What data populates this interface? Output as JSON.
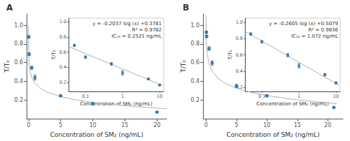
{
  "chart_data": [
    {
      "type": "scatter",
      "title": "A",
      "x_label": "Concentration of SM₂ (ng/mL)",
      "y_label": "T/T₀",
      "xlim": [
        -0.3,
        21.5
      ],
      "ylim": [
        0.0,
        1.12
      ],
      "xticks": [
        0,
        5,
        10,
        15,
        20
      ],
      "yticks": [
        0.2,
        0.4,
        0.6,
        0.8,
        {
          "value": 1.0,
          "label": "1.0"
        }
      ],
      "grid": false,
      "series": [
        {
          "type": "line",
          "color": "#b0b0b0",
          "x": [
            0.001,
            0.05,
            0.1,
            0.2,
            0.5,
            1,
            2,
            3,
            5,
            7,
            10,
            14,
            18,
            21.5
          ],
          "values": [
            0.9892,
            0.6431,
            0.5818,
            0.5205,
            0.4394,
            0.3781,
            0.3168,
            0.2809,
            0.2357,
            0.206,
            0.1744,
            0.1446,
            0.1224,
            0.1067
          ]
        },
        {
          "type": "scatter",
          "color": "#1f6faa",
          "x": [
            0.05,
            0.1,
            0.5,
            1.0,
            5.0,
            10.0,
            20.0
          ],
          "values": [
            0.875,
            0.69,
            0.545,
            0.44,
            0.245,
            0.16,
            0.07
          ],
          "y_err": [
            0.012,
            0.015,
            0.015,
            0.025,
            0.01,
            0.01,
            0.005
          ]
        }
      ],
      "inset": {
        "type": "scatter",
        "log": "x",
        "x_label": "Concentration of SM₂ (ng/mL)",
        "y_label": "T/T₀",
        "xlim": [
          0.035,
          13
        ],
        "ylim": [
          0.08,
          1.05
        ],
        "xticks": [
          0.1,
          1,
          10
        ],
        "yticks": [
          0.2,
          0.4,
          0.6,
          0.8,
          {
            "value": 1.0,
            "label": "1.0"
          }
        ],
        "grid": false,
        "annotations": [
          "y = -0.2037 log (x) +0.3781",
          "R² = 0.9782",
          "IC₅₀ = 0.2521 ng/mL"
        ],
        "series": [
          {
            "type": "line",
            "color": "#b0b0b0",
            "x": [
              0.035,
              12
            ],
            "values": [
              0.6747,
              0.1583
            ]
          },
          {
            "type": "scatter",
            "color": "#1f6faa",
            "x": [
              0.05,
              0.1,
              0.5,
              1.0,
              5.0,
              10.0
            ],
            "values": [
              0.69,
              0.535,
              0.445,
              0.325,
              0.245,
              0.165
            ],
            "y_err": [
              0.012,
              0.015,
              0.015,
              0.025,
              0.01,
              0.01
            ]
          }
        ]
      }
    },
    {
      "type": "scatter",
      "title": "B",
      "x_label": "Concentration of SM₂ (ng/mL)",
      "y_label": "T/T₀",
      "xlim": [
        -0.5,
        22.5
      ],
      "ylim": [
        0.0,
        1.12
      ],
      "xticks": [
        0,
        5,
        10,
        15,
        20
      ],
      "yticks": [
        0.2,
        0.4,
        0.6,
        0.8,
        {
          "value": 1.0,
          "label": "1.0"
        }
      ],
      "grid": false,
      "series": [
        {
          "type": "line",
          "color": "#b0b0b0",
          "x": [
            0.005,
            0.05,
            0.1,
            0.2,
            0.5,
            1,
            2,
            3,
            5,
            7,
            10,
            14,
            18,
            21.5
          ],
          "values": [
            1.1073,
            0.8468,
            0.7684,
            0.69,
            0.5863,
            0.5079,
            0.4295,
            0.3836,
            0.3258,
            0.2878,
            0.2474,
            0.2093,
            0.1809,
            0.1608
          ]
        },
        {
          "type": "scatter",
          "color": "#1f6faa",
          "x": [
            0.05,
            0.1,
            0.5,
            1.0,
            5.0,
            10.0,
            21.0
          ],
          "values": [
            0.925,
            0.88,
            0.75,
            0.595,
            0.35,
            0.245,
            0.12
          ],
          "y_err": [
            0.012,
            0.012,
            0.018,
            0.022,
            0.016,
            0.012,
            0.008
          ]
        }
      ],
      "inset": {
        "type": "scatter",
        "log": "x",
        "x_label": "Concentration of SM₂ (ng/mL)",
        "y_label": "T/T₀",
        "xlim": [
          0.035,
          13
        ],
        "ylim": [
          0.15,
          1.05
        ],
        "xticks": [
          0.1,
          1,
          10
        ],
        "yticks": [
          0.2,
          0.4,
          0.6,
          0.8,
          {
            "value": 1.0,
            "label": "1.0"
          }
        ],
        "grid": false,
        "annotations": [
          "y = -0.2605 log (x) +0.5079",
          "R² = 0.9836",
          "IC₅₀ = 1.072 ng/mL"
        ],
        "series": [
          {
            "type": "line",
            "color": "#b0b0b0",
            "x": [
              0.035,
              12
            ],
            "values": [
              0.8872,
              0.2268
            ]
          },
          {
            "type": "scatter",
            "color": "#1f6faa",
            "x": [
              0.05,
              0.1,
              0.5,
              1.0,
              5.0,
              10.0
            ],
            "values": [
              0.855,
              0.76,
              0.595,
              0.465,
              0.355,
              0.255
            ],
            "y_err": [
              0.015,
              0.015,
              0.018,
              0.025,
              0.014,
              0.012
            ]
          }
        ]
      }
    }
  ]
}
